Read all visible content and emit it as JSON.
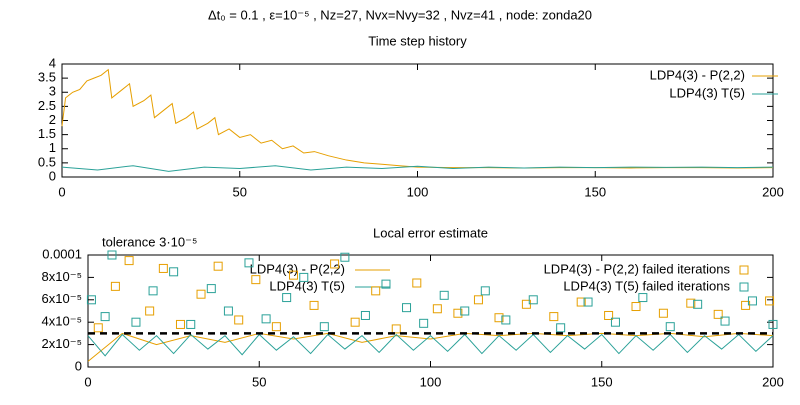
{
  "title": "Δt₀ = 0.1 , ε=10⁻⁵ , Nz=27, Nvx=Nvy=32 , Nvz=41 , node: zonda20",
  "chart_data": [
    {
      "type": "line",
      "title": "Time step history",
      "xlim": [
        0,
        200
      ],
      "xticks": [
        0,
        50,
        100,
        150,
        200
      ],
      "ylim": [
        0,
        4
      ],
      "yticks": [
        0,
        0.5,
        1,
        1.5,
        2,
        2.5,
        3,
        3.5,
        4
      ],
      "series": [
        {
          "name": "LDP4(3) - P(2,2)",
          "color": "#e69f00",
          "kind": "line",
          "x": [
            0,
            1,
            3,
            5,
            7,
            9,
            11,
            13,
            14,
            17,
            19,
            20,
            23,
            25,
            26,
            29,
            31,
            32,
            35,
            37,
            38,
            41,
            43,
            44,
            47,
            50,
            53,
            56,
            59,
            62,
            65,
            68,
            71,
            75,
            80,
            85,
            90,
            95,
            100,
            110,
            120,
            130,
            140,
            150,
            160,
            170,
            180,
            190,
            200
          ],
          "values": [
            1.8,
            2.8,
            3.0,
            3.1,
            3.4,
            3.5,
            3.6,
            3.8,
            2.8,
            3.1,
            3.3,
            2.5,
            2.7,
            2.9,
            2.1,
            2.4,
            2.6,
            1.9,
            2.1,
            2.3,
            1.7,
            1.9,
            2.1,
            1.5,
            1.7,
            1.4,
            1.5,
            1.2,
            1.3,
            1.0,
            1.1,
            0.85,
            0.9,
            0.75,
            0.6,
            0.5,
            0.45,
            0.4,
            0.35,
            0.33,
            0.33,
            0.32,
            0.33,
            0.33,
            0.32,
            0.33,
            0.33,
            0.32,
            0.33
          ]
        },
        {
          "name": "LDP4(3) T(5)",
          "color": "#2aa198",
          "kind": "line",
          "x": [
            0,
            10,
            20,
            30,
            40,
            50,
            60,
            70,
            80,
            90,
            100,
            110,
            120,
            130,
            140,
            150,
            160,
            170,
            180,
            190,
            200
          ],
          "values": [
            0.35,
            0.25,
            0.4,
            0.2,
            0.35,
            0.3,
            0.4,
            0.25,
            0.35,
            0.3,
            0.38,
            0.3,
            0.35,
            0.32,
            0.35,
            0.33,
            0.35,
            0.34,
            0.35,
            0.33,
            0.35
          ]
        }
      ]
    },
    {
      "type": "line",
      "title": "Local error estimate",
      "xlim": [
        0,
        200
      ],
      "xticks": [
        0,
        50,
        100,
        150,
        200
      ],
      "ylim": [
        0,
        0.0001
      ],
      "yticks": [
        0,
        {
          "value": 2e-05,
          "label": "2x10⁻⁵"
        },
        {
          "value": 4e-05,
          "label": "4x10⁻⁵"
        },
        {
          "value": 6e-05,
          "label": "6x10⁻⁵"
        },
        {
          "value": 8e-05,
          "label": "8x10⁻⁵"
        },
        {
          "value": 0.0001,
          "label": "0.0001"
        }
      ],
      "threshold": {
        "value": 3e-05,
        "label": "tolerance 3·10⁻⁵",
        "color": "#000000"
      },
      "series": [
        {
          "name": "LDP4(3) - P(2,2)",
          "color": "#e69f00",
          "kind": "line",
          "x": [
            0,
            10,
            20,
            30,
            40,
            50,
            60,
            70,
            80,
            90,
            100,
            110,
            120,
            130,
            140,
            150,
            160,
            170,
            180,
            190,
            200
          ],
          "values": [
            5e-06,
            3e-05,
            2e-05,
            2.8e-05,
            2.2e-05,
            3e-05,
            2.5e-05,
            3e-05,
            2.2e-05,
            2.8e-05,
            2.5e-05,
            3e-05,
            2.8e-05,
            3e-05,
            2.8e-05,
            3e-05,
            2.8e-05,
            3e-05,
            2.7e-05,
            3e-05,
            2.8e-05
          ]
        },
        {
          "name": "LDP4(3) T(5)",
          "color": "#2aa198",
          "kind": "line",
          "x": [
            0,
            5,
            10,
            15,
            20,
            25,
            30,
            35,
            40,
            45,
            50,
            55,
            60,
            65,
            70,
            75,
            80,
            85,
            90,
            95,
            100,
            105,
            110,
            115,
            120,
            125,
            130,
            135,
            140,
            145,
            150,
            155,
            160,
            165,
            170,
            175,
            180,
            185,
            190,
            195,
            200
          ],
          "values": [
            2.8e-05,
            1e-05,
            2.9e-05,
            1.5e-05,
            2.8e-05,
            1.2e-05,
            2.9e-05,
            1.6e-05,
            2.8e-05,
            1.1e-05,
            2.9e-05,
            1.5e-05,
            2.7e-05,
            1.2e-05,
            2.9e-05,
            1.6e-05,
            2.8e-05,
            1.3e-05,
            2.9e-05,
            1.5e-05,
            2.8e-05,
            1.4e-05,
            2.9e-05,
            1.2e-05,
            2.8e-05,
            1.5e-05,
            2.9e-05,
            1.3e-05,
            2.8e-05,
            1.6e-05,
            2.9e-05,
            1.2e-05,
            2.8e-05,
            1.5e-05,
            2.9e-05,
            1.3e-05,
            2.8e-05,
            1.6e-05,
            2.9e-05,
            1.4e-05,
            2.8e-05
          ]
        },
        {
          "name": "LDP4(3) - P(2,2) failed iterations",
          "color": "#e69f00",
          "kind": "points",
          "marker": "square",
          "x": [
            3,
            8,
            12,
            18,
            22,
            27,
            33,
            38,
            44,
            49,
            55,
            60,
            66,
            72,
            78,
            84,
            90,
            96,
            102,
            108,
            114,
            120,
            128,
            136,
            144,
            152,
            160,
            168,
            176,
            184,
            192,
            199
          ],
          "values": [
            3.5e-05,
            7.2e-05,
            9.5e-05,
            5e-05,
            8.8e-05,
            3.8e-05,
            6.5e-05,
            9e-05,
            4.2e-05,
            7.8e-05,
            3.6e-05,
            8.2e-05,
            5.5e-05,
            9.2e-05,
            4e-05,
            6.8e-05,
            3.4e-05,
            7.5e-05,
            5.2e-05,
            4.8e-05,
            6e-05,
            4.4e-05,
            5.6e-05,
            4.5e-05,
            5.8e-05,
            4.6e-05,
            5.4e-05,
            4.8e-05,
            5.7e-05,
            4.7e-05,
            5.5e-05,
            5.9e-05
          ]
        },
        {
          "name": "LDP4(3) T(5) failed iterations",
          "color": "#2aa198",
          "kind": "points",
          "marker": "square",
          "x": [
            1,
            5,
            7,
            14,
            19,
            25,
            30,
            36,
            41,
            47,
            52,
            58,
            63,
            69,
            75,
            81,
            87,
            93,
            98,
            104,
            110,
            116,
            122,
            130,
            138,
            146,
            154,
            162,
            170,
            178,
            186,
            194,
            200
          ],
          "values": [
            6e-05,
            4.5e-05,
            0.0001,
            4e-05,
            6.8e-05,
            8.5e-05,
            3.8e-05,
            7e-05,
            5e-05,
            9.3e-05,
            4.3e-05,
            6.2e-05,
            8e-05,
            3.6e-05,
            9.8e-05,
            4.6e-05,
            7.4e-05,
            5.3e-05,
            3.9e-05,
            6.4e-05,
            5e-05,
            6.8e-05,
            4.2e-05,
            6e-05,
            3.5e-05,
            5.8e-05,
            4e-05,
            6.2e-05,
            3.6e-05,
            5.6e-05,
            4.1e-05,
            5.9e-05,
            3.8e-05
          ]
        }
      ]
    }
  ]
}
